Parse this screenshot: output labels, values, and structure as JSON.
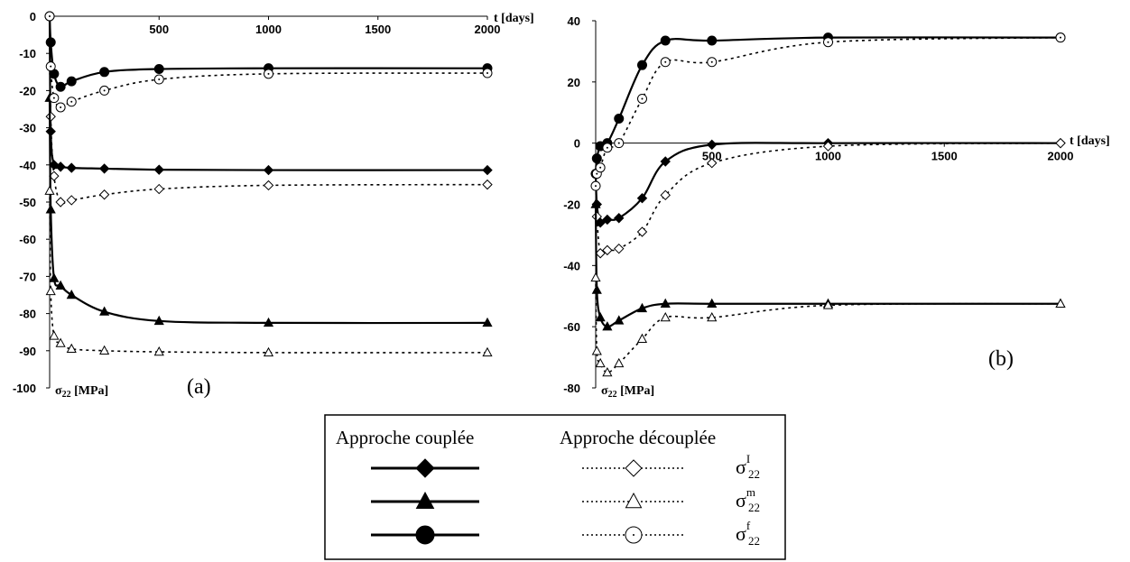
{
  "chart_data": [
    {
      "type": "line",
      "panel": "(a)",
      "xlabel": "t [days]",
      "ylabel_symbol": "σ",
      "ylabel_sub": "22",
      "ylabel_unit": " [MPa]",
      "xlim": [
        0,
        2000
      ],
      "ylim": [
        -100,
        0
      ],
      "xticks": [
        500,
        1000,
        1500,
        2000
      ],
      "yticks": [
        0,
        -10,
        -20,
        -30,
        -40,
        -50,
        -60,
        -70,
        -80,
        -90,
        -100
      ],
      "series": [
        {
          "key": "I_coupled",
          "style": "solid",
          "marker": "diamond",
          "filled": true,
          "x": [
            0,
            5,
            20,
            50,
            100,
            250,
            500,
            1000,
            2000
          ],
          "y": [
            0,
            -31,
            -40,
            -40.5,
            -40.8,
            -41,
            -41.3,
            -41.4,
            -41.4
          ]
        },
        {
          "key": "I_decoupled",
          "style": "dotted",
          "marker": "diamond",
          "filled": false,
          "x": [
            0,
            5,
            20,
            50,
            100,
            250,
            500,
            1000,
            2000
          ],
          "y": [
            0,
            -27,
            -43,
            -50,
            -49.5,
            -48,
            -46.5,
            -45.5,
            -45.3
          ]
        },
        {
          "key": "m_coupled",
          "style": "solid",
          "marker": "triangle",
          "filled": true,
          "x": [
            0,
            5,
            20,
            50,
            100,
            250,
            500,
            1000,
            2000
          ],
          "y": [
            -22,
            -52,
            -70.5,
            -72.5,
            -75,
            -79.5,
            -82,
            -82.5,
            -82.5
          ]
        },
        {
          "key": "m_decoupled",
          "style": "dotted",
          "marker": "triangle",
          "filled": false,
          "x": [
            0,
            5,
            20,
            50,
            100,
            250,
            500,
            1000,
            2000
          ],
          "y": [
            -47,
            -74,
            -86,
            -88,
            -89.5,
            -90,
            -90.3,
            -90.5,
            -90.5
          ]
        },
        {
          "key": "f_coupled",
          "style": "solid",
          "marker": "circle",
          "filled": true,
          "x": [
            0,
            5,
            20,
            50,
            100,
            250,
            500,
            1000,
            2000
          ],
          "y": [
            0,
            -7,
            -15.5,
            -19,
            -17.5,
            -15,
            -14.2,
            -14,
            -14
          ]
        },
        {
          "key": "f_decoupled",
          "style": "dotted",
          "marker": "circle",
          "filled": false,
          "x": [
            0,
            5,
            20,
            50,
            100,
            250,
            500,
            1000,
            2000
          ],
          "y": [
            0,
            -13.5,
            -22,
            -24.5,
            -23,
            -20,
            -17,
            -15.5,
            -15.3
          ]
        }
      ]
    },
    {
      "type": "line",
      "panel": "(b)",
      "xlabel": "t [days]",
      "ylabel_symbol": "σ",
      "ylabel_sub": "22",
      "ylabel_unit": " [MPa]",
      "xlim": [
        0,
        2000
      ],
      "ylim": [
        -80,
        40
      ],
      "xticks": [
        500,
        1000,
        1500,
        2000
      ],
      "yticks": [
        40,
        20,
        0,
        -20,
        -40,
        -60,
        -80
      ],
      "series": [
        {
          "key": "I_coupled",
          "style": "solid",
          "marker": "diamond",
          "filled": true,
          "x": [
            0,
            5,
            20,
            50,
            100,
            200,
            300,
            500,
            1000,
            2000
          ],
          "y": [
            -10,
            -20,
            -26,
            -25,
            -24.5,
            -18,
            -6,
            -0.5,
            0,
            0
          ]
        },
        {
          "key": "I_decoupled",
          "style": "dotted",
          "marker": "diamond",
          "filled": false,
          "x": [
            0,
            5,
            20,
            50,
            100,
            200,
            300,
            500,
            1000,
            2000
          ],
          "y": [
            -14,
            -24,
            -36,
            -35,
            -34.5,
            -29,
            -17,
            -6.5,
            -1,
            0
          ]
        },
        {
          "key": "m_coupled",
          "style": "solid",
          "marker": "triangle",
          "filled": true,
          "x": [
            0,
            5,
            20,
            50,
            100,
            200,
            300,
            500,
            1000,
            2000
          ],
          "y": [
            -20,
            -48,
            -57,
            -60,
            -58,
            -54,
            -52.5,
            -52.5,
            -52.5,
            -52.5
          ]
        },
        {
          "key": "m_decoupled",
          "style": "dotted",
          "marker": "triangle",
          "filled": false,
          "x": [
            0,
            5,
            20,
            50,
            100,
            200,
            300,
            500,
            1000,
            2000
          ],
          "y": [
            -44,
            -68,
            -72,
            -75,
            -72,
            -64,
            -57,
            -57,
            -53,
            -52.5
          ]
        },
        {
          "key": "f_coupled",
          "style": "solid",
          "marker": "circle",
          "filled": true,
          "x": [
            0,
            5,
            20,
            50,
            100,
            200,
            300,
            500,
            1000,
            2000
          ],
          "y": [
            -10,
            -5,
            -1,
            0,
            8,
            25.5,
            33.5,
            33.5,
            34.5,
            34.5
          ]
        },
        {
          "key": "f_decoupled",
          "style": "dotted",
          "marker": "circle",
          "filled": false,
          "x": [
            0,
            5,
            20,
            50,
            100,
            200,
            300,
            500,
            1000,
            2000
          ],
          "y": [
            -14,
            -10,
            -8,
            -1.5,
            0,
            14.5,
            26.5,
            26.5,
            33,
            34.5
          ]
        }
      ]
    }
  ],
  "legend": {
    "header_coupled": "Approche couplée",
    "header_decoupled": "Approche découplée",
    "rows": [
      {
        "marker": "diamond",
        "symbol": "σ",
        "sup": "I",
        "sub": "22"
      },
      {
        "marker": "triangle",
        "symbol": "σ",
        "sup": "m",
        "sub": "22"
      },
      {
        "marker": "circle",
        "symbol": "σ",
        "sup": "f",
        "sub": "22"
      }
    ]
  }
}
